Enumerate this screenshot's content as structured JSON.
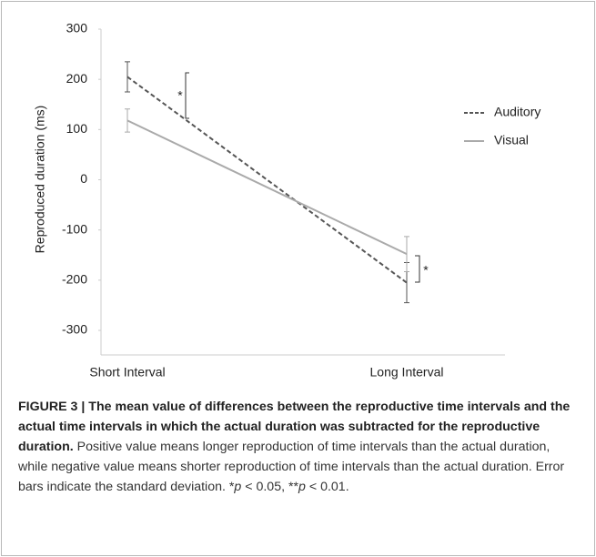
{
  "chart_data": {
    "type": "line",
    "y_label": "Reproduced duration (ms)",
    "categories": [
      "Short Interval",
      "Long Interval"
    ],
    "series": [
      {
        "name": "Auditory",
        "color": "#555555",
        "dash": true,
        "values": [
          205,
          -205
        ],
        "errors": [
          30,
          40
        ]
      },
      {
        "name": "Visual",
        "color": "#aaaaaa",
        "dash": false,
        "values": [
          118,
          -148
        ],
        "errors": [
          23,
          35
        ]
      }
    ],
    "ylim": [
      -300,
      300
    ],
    "yticks": [
      300,
      200,
      100,
      0,
      {
        "value": -100,
        "label": "-100"
      },
      {
        "value": -200,
        "label": "-200"
      },
      {
        "value": -300,
        "label": "-300"
      }
    ],
    "annotations": [
      "*",
      "*"
    ],
    "legend": "right"
  },
  "caption": {
    "title": "FIGURE 3 | The mean value of differences between the reproductive time intervals and the actual time intervals in which the actual duration was subtracted for the reproductive duration.",
    "body_parts": [
      " Positive value means longer reproduction of time intervals than the actual duration, while negative value means shorter reproduction of time intervals than the actual duration. Error bars indicate the standard deviation. *",
      "p",
      " < 0.05, **",
      "p",
      " < 0.01."
    ]
  }
}
